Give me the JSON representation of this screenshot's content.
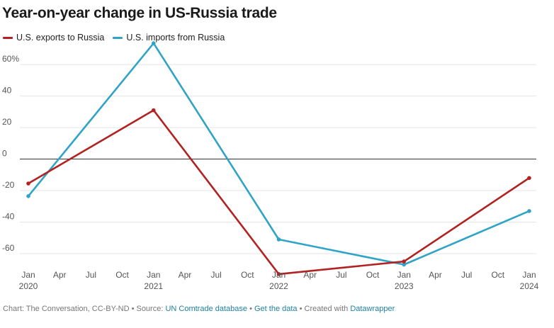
{
  "title": "Year-on-year change in US-Russia trade",
  "legend": [
    {
      "label": "U.S. exports to Russia",
      "color": "#b22222"
    },
    {
      "label": "U.S. imports from Russia",
      "color": "#30a4c6"
    }
  ],
  "chart_data": {
    "type": "line",
    "title": "Year-on-year change in US-Russia trade",
    "xlabel": "",
    "ylabel": "",
    "ylim": [
      -73.5,
      74
    ],
    "y_ticks": [
      {
        "value": 60,
        "label": "60%"
      },
      {
        "value": 40,
        "label": "40"
      },
      {
        "value": 20,
        "label": "20"
      },
      {
        "value": 0,
        "label": "0"
      },
      {
        "value": -20,
        "label": "-20"
      },
      {
        "value": -40,
        "label": "-40"
      },
      {
        "value": -60,
        "label": "-60"
      }
    ],
    "x_ticks": [
      {
        "month": 0,
        "label": "Jan",
        "year": "2020"
      },
      {
        "month": 3,
        "label": "Apr"
      },
      {
        "month": 6,
        "label": "Jul"
      },
      {
        "month": 9,
        "label": "Oct"
      },
      {
        "month": 12,
        "label": "Jan",
        "year": "2021"
      },
      {
        "month": 15,
        "label": "Apr"
      },
      {
        "month": 18,
        "label": "Jul"
      },
      {
        "month": 21,
        "label": "Oct"
      },
      {
        "month": 24,
        "label": "Jan",
        "year": "2022"
      },
      {
        "month": 27,
        "label": "Apr"
      },
      {
        "month": 30,
        "label": "Jul"
      },
      {
        "month": 33,
        "label": "Oct"
      },
      {
        "month": 36,
        "label": "Jan",
        "year": "2023"
      },
      {
        "month": 39,
        "label": "Apr"
      },
      {
        "month": 42,
        "label": "Jul"
      },
      {
        "month": 45,
        "label": "Oct"
      },
      {
        "month": 48,
        "label": "Jan",
        "year": "2024"
      }
    ],
    "x_range_months": [
      0,
      48
    ],
    "series": [
      {
        "name": "U.S. exports to Russia",
        "color": "#b22222",
        "points": [
          {
            "month": 0,
            "value": -15.5
          },
          {
            "month": 12,
            "value": 31
          },
          {
            "month": 24,
            "value": -73
          },
          {
            "month": 36,
            "value": -65
          },
          {
            "month": 48,
            "value": -12
          }
        ]
      },
      {
        "name": "U.S. imports from Russia",
        "color": "#30a4c6",
        "points": [
          {
            "month": 0,
            "value": -23.5
          },
          {
            "month": 12,
            "value": 73.5
          },
          {
            "month": 24,
            "value": -51
          },
          {
            "month": 36,
            "value": -67
          },
          {
            "month": 48,
            "value": -33
          }
        ]
      }
    ]
  },
  "footer": {
    "prefix": "Chart: The Conversation, CC-BY-ND • Source: ",
    "source_link": "UN Comtrade database",
    "sep1": " • ",
    "data_link": "Get the data",
    "sep2": " • Created with ",
    "tool_link": "Datawrapper"
  }
}
